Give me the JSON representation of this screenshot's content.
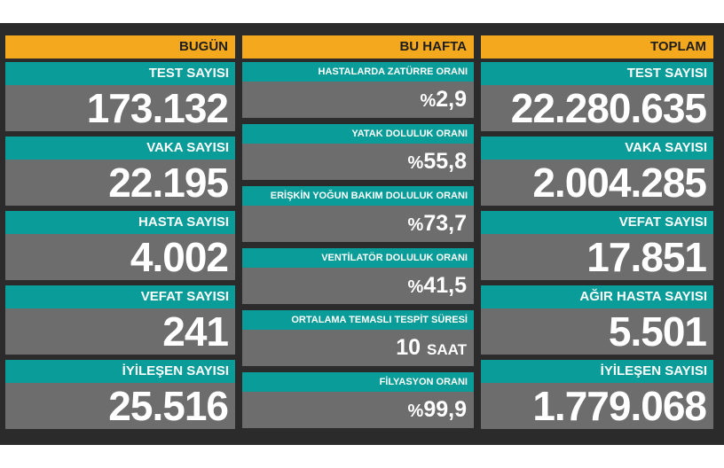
{
  "today": {
    "header": "BUGÜN",
    "items": [
      {
        "label": "TEST SAYISI",
        "value": "173.132"
      },
      {
        "label": "VAKA SAYISI",
        "value": "22.195"
      },
      {
        "label": "HASTA SAYISI",
        "value": "4.002"
      },
      {
        "label": "VEFAT SAYISI",
        "value": "241"
      },
      {
        "label": "İYİLEŞEN SAYISI",
        "value": "25.516"
      }
    ]
  },
  "week": {
    "header": "BU HAFTA",
    "items": [
      {
        "label": "HASTALARDA ZATÜRRE ORANI",
        "prefix": "%",
        "value": "2,9",
        "unit": ""
      },
      {
        "label": "YATAK DOLULUK ORANI",
        "prefix": "%",
        "value": "55,8",
        "unit": ""
      },
      {
        "label": "ERİŞKİN YOĞUN BAKIM DOLULUK ORANI",
        "prefix": "%",
        "value": "73,7",
        "unit": ""
      },
      {
        "label": "VENTİLATÖR DOLULUK ORANI",
        "prefix": "%",
        "value": "41,5",
        "unit": ""
      },
      {
        "label": "ORTALAMA TEMASLI TESPİT SÜRESİ",
        "prefix": "",
        "value": "10",
        "unit": "SAAT"
      },
      {
        "label": "FİLYASYON ORANI",
        "prefix": "%",
        "value": "99,9",
        "unit": ""
      }
    ]
  },
  "total": {
    "header": "TOPLAM",
    "items": [
      {
        "label": "TEST SAYISI",
        "value": "22.280.635"
      },
      {
        "label": "VAKA SAYISI",
        "value": "2.004.285"
      },
      {
        "label": "VEFAT SAYISI",
        "value": "17.851"
      },
      {
        "label": "AĞIR HASTA SAYISI",
        "value": "5.501"
      },
      {
        "label": "İYİLEŞEN SAYISI",
        "value": "1.779.068"
      }
    ]
  },
  "colors": {
    "header_bg": "#f4a81d",
    "label_bg": "#0a9c98",
    "card_bg": "#6d6d6d",
    "board_bg": "#2b2b2b"
  }
}
